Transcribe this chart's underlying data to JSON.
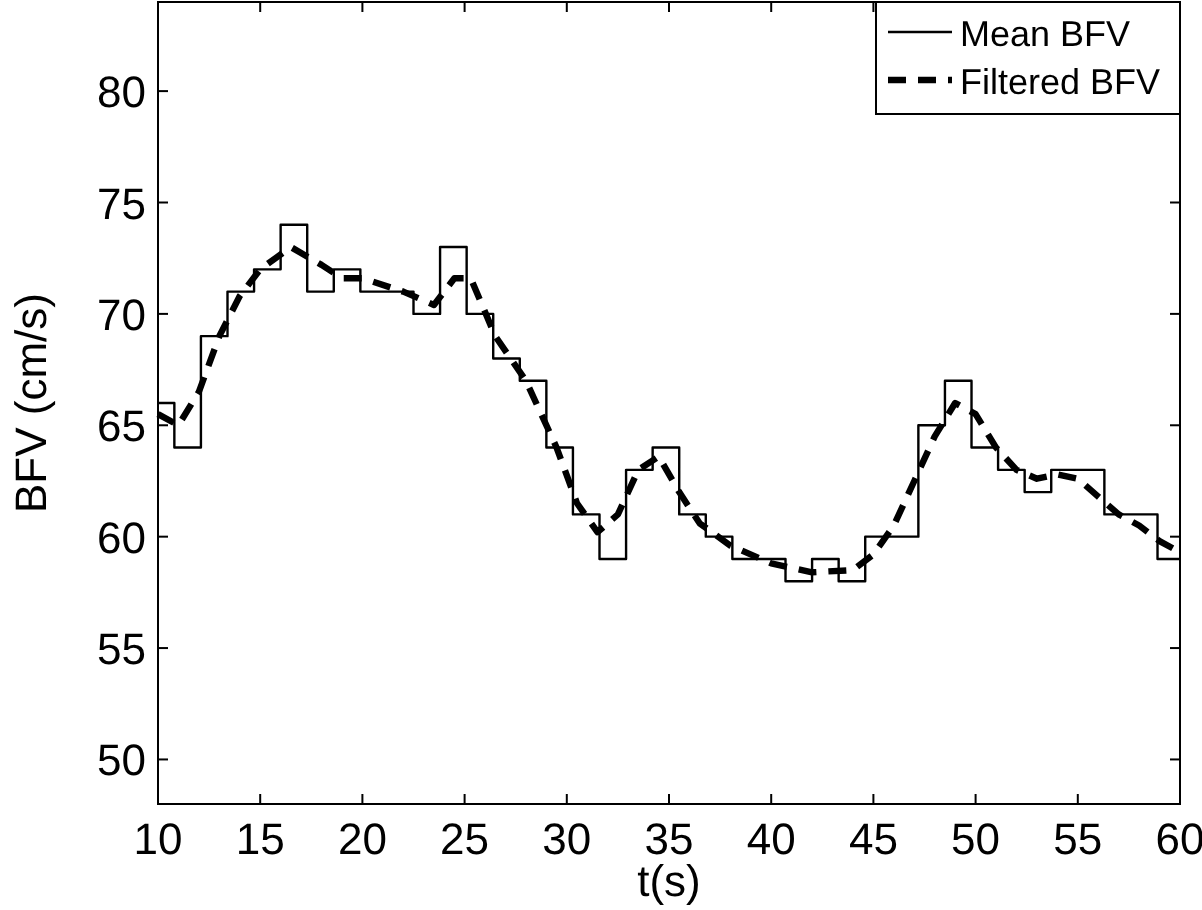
{
  "chart_data": {
    "type": "step",
    "xlabel": "t(s)",
    "ylabel": "BFV (cm/s)",
    "xlim": [
      10,
      60
    ],
    "ylim": [
      48,
      84
    ],
    "xticks": [
      10,
      15,
      20,
      25,
      30,
      35,
      40,
      45,
      50,
      55,
      60
    ],
    "yticks": [
      50,
      55,
      60,
      65,
      70,
      75,
      80
    ],
    "grid": false,
    "legend": "top right",
    "series": [
      {
        "name": "Mean BFV",
        "color": "#000000",
        "line_style": "solid",
        "x": [
          10,
          10.8,
          12.1,
          13.4,
          14.7,
          16.0,
          17.3,
          18.6,
          19.9,
          21.2,
          22.5,
          23.8,
          25.1,
          26.4,
          27.7,
          29.0,
          30.3,
          31.6,
          32.9,
          34.2,
          35.5,
          36.8,
          38.1,
          39.4,
          40.7,
          42.0,
          43.3,
          44.6,
          45.9,
          47.2,
          48.5,
          49.8,
          51.1,
          52.4,
          53.7,
          55.0,
          56.3,
          57.6,
          58.9,
          60
        ],
        "values": [
          66,
          64,
          69,
          71,
          72,
          74,
          71,
          72,
          71,
          71,
          70,
          73,
          70,
          68,
          67,
          64,
          61,
          59,
          63,
          64,
          61,
          60,
          59,
          59,
          58,
          59,
          58,
          60,
          60,
          65,
          67,
          64,
          63,
          62,
          63,
          63,
          61,
          61,
          59,
          59
        ]
      },
      {
        "name": "Filtered BFV",
        "color": "#000000",
        "type": "line",
        "line_style": "dashed",
        "x": [
          10,
          11,
          12,
          13,
          14,
          15,
          16.5,
          18,
          19,
          20,
          22,
          23.5,
          24.5,
          25.3,
          26.5,
          28,
          29.5,
          30.5,
          31.5,
          32.5,
          33.5,
          34.5,
          35.5,
          36.5,
          38,
          40,
          42,
          44,
          45,
          46,
          47,
          48,
          49,
          50,
          51,
          52,
          53,
          54,
          55,
          56,
          57,
          58,
          59,
          60
        ],
        "values": [
          65.5,
          65,
          66.5,
          69,
          70.8,
          72,
          73,
          72.2,
          71.6,
          71.6,
          71,
          70.4,
          71.6,
          71.6,
          69,
          67,
          64,
          61.5,
          60.2,
          61,
          63,
          63.6,
          62,
          60.6,
          59.6,
          58.8,
          58.4,
          58.5,
          59.2,
          60.5,
          62.5,
          64.5,
          66,
          65.5,
          64,
          63,
          62.6,
          62.8,
          62.6,
          61.8,
          61,
          60.5,
          59.8,
          59.3
        ]
      }
    ]
  }
}
